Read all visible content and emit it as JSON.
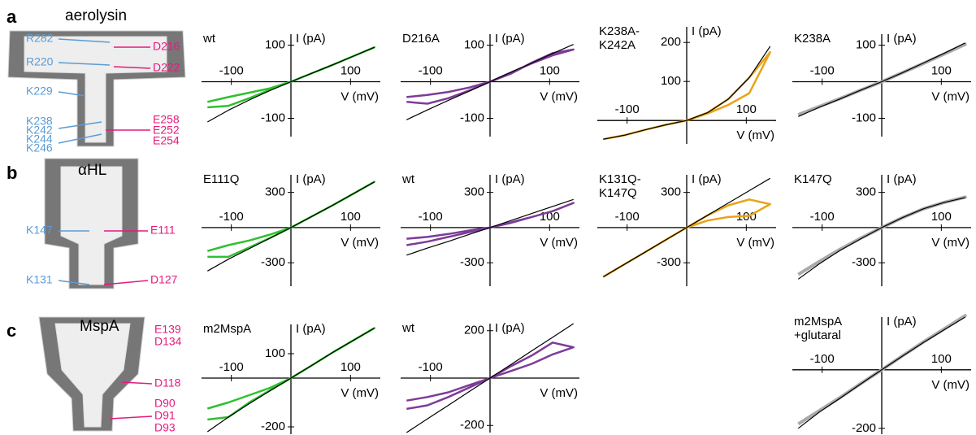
{
  "structures": [
    {
      "letter": "a",
      "name": "aerolysin",
      "blue": [
        "R282",
        "R220",
        "K229",
        "K238",
        "K242",
        "K244",
        "K246"
      ],
      "pink": [
        "D216",
        "D222",
        "E258",
        "E252",
        "E254"
      ]
    },
    {
      "letter": "b",
      "name": "αHL",
      "blue": [
        "K147",
        "K131"
      ],
      "pink": [
        "E111",
        "D127"
      ]
    },
    {
      "letter": "c",
      "name": "MspA",
      "blue": [],
      "pink": [
        "E139",
        "D134",
        "D118",
        "D90",
        "D91",
        "D93"
      ]
    }
  ],
  "chart_data": [
    {
      "type": "line",
      "title": [
        "wt"
      ],
      "xlabel": "V (mV)",
      "ylabel": "I (pA)",
      "x": [
        -140,
        -105,
        -70,
        -35,
        0,
        35,
        70,
        105,
        140,
        105,
        70,
        35,
        0,
        -35,
        -70,
        -105,
        -140
      ],
      "xlim": [
        -150,
        150
      ],
      "xticks": [
        -100,
        100
      ],
      "ylim": [
        -150,
        130
      ],
      "yticks": [
        -100,
        100
      ],
      "series": [
        {
          "color": "#2fc02f",
          "values": [
            -70,
            -66,
            -45,
            -22,
            0,
            23,
            46,
            70,
            94,
            70,
            46,
            23,
            0,
            -18,
            -30,
            -42,
            -55
          ]
        },
        {
          "color": "#000000",
          "values": [
            -110,
            -78,
            -50,
            -24,
            0,
            23,
            46,
            70,
            94,
            null,
            null,
            null,
            null,
            null,
            null,
            null,
            null
          ]
        }
      ]
    },
    {
      "type": "line",
      "title": [
        "D216A"
      ],
      "xlabel": "V (mV)",
      "ylabel": "I (pA)",
      "x": [
        -140,
        -105,
        -70,
        -35,
        0,
        35,
        70,
        105,
        140,
        105,
        70,
        35,
        0,
        -35,
        -70,
        -105,
        -140
      ],
      "xlim": [
        -150,
        150
      ],
      "xticks": [
        -100,
        100
      ],
      "ylim": [
        -150,
        130
      ],
      "yticks": [
        -100,
        100
      ],
      "series": [
        {
          "color": "#7d3c98",
          "values": [
            -55,
            -60,
            -45,
            -24,
            0,
            25,
            50,
            72,
            88,
            78,
            52,
            22,
            0,
            -16,
            -28,
            -36,
            -42
          ]
        },
        {
          "color": "#000000",
          "values": [
            -104,
            -77,
            -51,
            -26,
            0,
            26,
            51,
            77,
            102,
            null,
            null,
            null,
            null,
            null,
            null,
            null,
            null
          ]
        }
      ]
    },
    {
      "type": "line",
      "title": [
        "K238A-",
        "K242A"
      ],
      "xlabel": "V (mV)",
      "ylabel": "I (pA)",
      "x": [
        -140,
        -105,
        -70,
        -35,
        0,
        35,
        70,
        105,
        140,
        105,
        70,
        35,
        0,
        -35,
        -70,
        -105,
        -140
      ],
      "xlim": [
        -150,
        150
      ],
      "xticks": [
        -100,
        100
      ],
      "ylim": [
        -60,
        240
      ],
      "yticks": [
        100,
        200
      ],
      "series": [
        {
          "color": "#e8a317",
          "values": [
            -48,
            -38,
            -24,
            -11,
            0,
            20,
            55,
            110,
            175,
            70,
            40,
            18,
            0,
            -11,
            -24,
            -38,
            -48
          ]
        },
        {
          "color": "#000000",
          "values": [
            -48,
            -38,
            -24,
            -11,
            0,
            20,
            55,
            110,
            190,
            null,
            null,
            null,
            null,
            null,
            null,
            null,
            null
          ]
        }
      ]
    },
    {
      "type": "line",
      "title": [
        "K238A"
      ],
      "xlabel": "V (mV)",
      "ylabel": "I (pA)",
      "x": [
        -140,
        -105,
        -70,
        -35,
        0,
        35,
        70,
        105,
        140,
        105,
        70,
        35,
        0,
        -35,
        -70,
        -105,
        -140
      ],
      "xlim": [
        -150,
        150
      ],
      "xticks": [
        -100,
        100
      ],
      "ylim": [
        -150,
        130
      ],
      "yticks": [
        -100,
        100
      ],
      "series": [
        {
          "color": "#aaaaaa",
          "values": [
            -90,
            -68,
            -46,
            -23,
            0,
            25,
            50,
            76,
            102,
            76,
            50,
            25,
            0,
            -23,
            -46,
            -68,
            -90
          ]
        },
        {
          "color": "#000000",
          "values": [
            -95,
            -70,
            -47,
            -23,
            0,
            25,
            51,
            78,
            106,
            null,
            null,
            null,
            null,
            null,
            null,
            null,
            null
          ]
        }
      ]
    },
    {
      "type": "line",
      "title": [
        "E111Q"
      ],
      "xlabel": "V (mV)",
      "ylabel": "I (pA)",
      "x": [
        -140,
        -105,
        -70,
        -35,
        0,
        35,
        70,
        105,
        140,
        105,
        70,
        35,
        0,
        -35,
        -70,
        -105,
        -140
      ],
      "xlim": [
        -150,
        150
      ],
      "xticks": [
        -100,
        100
      ],
      "ylim": [
        -500,
        450
      ],
      "yticks": [
        -300,
        300
      ],
      "series": [
        {
          "color": "#2fc02f",
          "values": [
            -250,
            -250,
            -170,
            -88,
            0,
            95,
            190,
            290,
            390,
            290,
            190,
            95,
            0,
            -60,
            -110,
            -150,
            -200
          ]
        },
        {
          "color": "#000000",
          "values": [
            -370,
            -270,
            -180,
            -90,
            0,
            95,
            190,
            290,
            390,
            null,
            null,
            null,
            null,
            null,
            null,
            null,
            null
          ]
        }
      ]
    },
    {
      "type": "line",
      "title": [
        "wt"
      ],
      "xlabel": "V (mV)",
      "ylabel": "I (pA)",
      "x": [
        -140,
        -105,
        -70,
        -35,
        0,
        35,
        70,
        105,
        140,
        105,
        70,
        35,
        0,
        -35,
        -70,
        -105,
        -140
      ],
      "xlim": [
        -150,
        150
      ],
      "xticks": [
        -100,
        100
      ],
      "ylim": [
        -500,
        450
      ],
      "yticks": [
        -300,
        300
      ],
      "series": [
        {
          "color": "#7d3c98",
          "values": [
            -150,
            -120,
            -80,
            -40,
            0,
            45,
            90,
            140,
            210,
            140,
            90,
            40,
            0,
            -25,
            -55,
            -80,
            -95
          ]
        },
        {
          "color": "#000000",
          "values": [
            -235,
            -175,
            -118,
            -58,
            0,
            60,
            120,
            180,
            240,
            null,
            null,
            null,
            null,
            null,
            null,
            null,
            null
          ]
        }
      ]
    },
    {
      "type": "line",
      "title": [
        "K131Q-",
        "K147Q"
      ],
      "xlabel": "V (mV)",
      "ylabel": "I (pA)",
      "x": [
        -140,
        -105,
        -70,
        -35,
        0,
        35,
        70,
        105,
        140,
        105,
        70,
        35,
        0,
        -35,
        -70,
        -105,
        -140
      ],
      "xlim": [
        -150,
        150
      ],
      "xticks": [
        -100,
        100
      ],
      "ylim": [
        -500,
        450
      ],
      "yticks": [
        -300,
        300
      ],
      "series": [
        {
          "color": "#e8a317",
          "values": [
            -420,
            -315,
            -210,
            -105,
            0,
            105,
            190,
            240,
            200,
            100,
            90,
            60,
            0,
            -105,
            -210,
            -315,
            -420
          ]
        },
        {
          "color": "#000000",
          "values": [
            -420,
            -315,
            -210,
            -105,
            0,
            105,
            210,
            315,
            420,
            null,
            null,
            null,
            null,
            null,
            null,
            null,
            null
          ]
        }
      ]
    },
    {
      "type": "line",
      "title": [
        "K147Q"
      ],
      "xlabel": "V (mV)",
      "ylabel": "I (pA)",
      "x": [
        -140,
        -105,
        -70,
        -35,
        0,
        35,
        70,
        105,
        140,
        105,
        70,
        35,
        0,
        -35,
        -70,
        -105,
        -140
      ],
      "xlim": [
        -150,
        150
      ],
      "xticks": [
        -100,
        100
      ],
      "ylim": [
        -500,
        450
      ],
      "yticks": [
        -300,
        300
      ],
      "series": [
        {
          "color": "#aaaaaa",
          "values": [
            -400,
            -290,
            -185,
            -90,
            0,
            85,
            160,
            215,
            260,
            215,
            160,
            85,
            0,
            -90,
            -185,
            -290,
            -400
          ]
        },
        {
          "color": "#000000",
          "values": [
            -440,
            -310,
            -195,
            -95,
            0,
            85,
            160,
            215,
            255,
            null,
            null,
            null,
            null,
            null,
            null,
            null,
            null
          ]
        }
      ]
    },
    {
      "type": "line",
      "title": [
        "m2MspA"
      ],
      "xlabel": "V (mV)",
      "ylabel": "I (pA)",
      "x": [
        -140,
        -105,
        -70,
        -35,
        0,
        35,
        70,
        105,
        140,
        105,
        70,
        35,
        0,
        -35,
        -70,
        -105,
        -140
      ],
      "xlim": [
        -150,
        150
      ],
      "xticks": [
        -100,
        100
      ],
      "ylim": [
        -230,
        220
      ],
      "yticks": [
        -200,
        100
      ],
      "series": [
        {
          "color": "#2fc02f",
          "values": [
            -170,
            -160,
            -100,
            -50,
            0,
            52,
            105,
            155,
            205,
            155,
            105,
            52,
            0,
            -40,
            -70,
            -100,
            -125
          ]
        },
        {
          "color": "#000000",
          "values": [
            -220,
            -160,
            -105,
            -52,
            0,
            52,
            105,
            155,
            205,
            null,
            null,
            null,
            null,
            null,
            null,
            null,
            null
          ]
        }
      ]
    },
    {
      "type": "line",
      "title": [
        "wt"
      ],
      "xlabel": "V (mV)",
      "ylabel": "I (pA)",
      "x": [
        -140,
        -105,
        -70,
        -35,
        0,
        35,
        70,
        105,
        140,
        105,
        70,
        35,
        0,
        -35,
        -70,
        -105,
        -140
      ],
      "xlim": [
        -150,
        150
      ],
      "xticks": [
        -100
      ],
      "ylim": [
        -230,
        230
      ],
      "yticks": [
        -200,
        200
      ],
      "series": [
        {
          "color": "#7d3c98",
          "values": [
            -130,
            -115,
            -80,
            -40,
            0,
            50,
            95,
            150,
            130,
            100,
            60,
            30,
            0,
            -30,
            -60,
            -80,
            -95
          ]
        },
        {
          "color": "#000000",
          "values": [
            -230,
            -172,
            -115,
            -57,
            0,
            57,
            115,
            172,
            230,
            null,
            null,
            null,
            null,
            null,
            null,
            null,
            null
          ]
        }
      ]
    },
    {
      "type": "line",
      "title": [
        "m2MspA",
        "+glutaral"
      ],
      "xlabel": "V (mV)",
      "ylabel": "I (pA)",
      "x": [
        -140,
        -105,
        -70,
        -35,
        0,
        35,
        70,
        105,
        140,
        105,
        70,
        35,
        0,
        -35,
        -70,
        -105,
        -140
      ],
      "xlim": [
        -150,
        150
      ],
      "xticks": [
        -100,
        100
      ],
      "ylim": [
        -220,
        180
      ],
      "yticks": [
        -200
      ],
      "series": [
        {
          "color": "#aaaaaa",
          "values": [
            -185,
            -140,
            -95,
            -47,
            0,
            48,
            95,
            140,
            185,
            140,
            95,
            48,
            0,
            -47,
            -95,
            -140,
            -185
          ]
        },
        {
          "color": "#000000",
          "values": [
            -200,
            -145,
            -97,
            -48,
            0,
            47,
            93,
            137,
            180,
            null,
            null,
            null,
            null,
            null,
            null,
            null,
            null
          ]
        }
      ]
    }
  ]
}
